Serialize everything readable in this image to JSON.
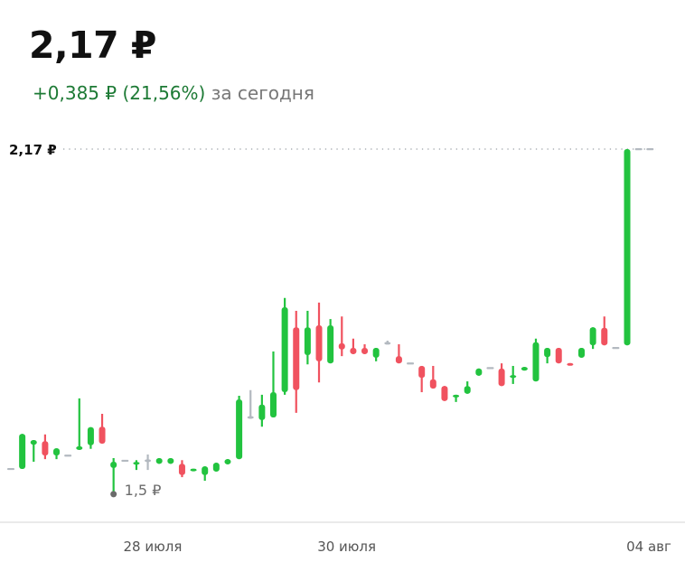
{
  "header": {
    "price": "2,17 ₽",
    "change": "+0,385 ₽ (21,56%)",
    "period": "за сегодня"
  },
  "chart_data": {
    "type": "candlestick",
    "title": "",
    "xlabel": "",
    "ylabel": "",
    "ylim": [
      1.45,
      2.2
    ],
    "grid": false,
    "x_tick_labels": [
      {
        "label": "28 июля",
        "index": 11
      },
      {
        "label": "30 июля",
        "index": 28
      },
      {
        "label": "04 авг",
        "index": 56
      }
    ],
    "last_price_label": "2,17 ₽",
    "last_price": 2.17,
    "min_label": "1,5 ₽",
    "min_value": 1.5,
    "min_index": 9,
    "colors": {
      "up": "#22c33f",
      "down": "#f0525f",
      "flat": "#b3b9c0",
      "text": "#111111",
      "axis": "#e3e3e3"
    },
    "ohlc": [
      [
        1.549,
        1.549,
        1.549,
        1.549
      ],
      [
        1.549,
        1.617,
        1.549,
        1.617
      ],
      [
        1.596,
        1.605,
        1.563,
        1.605
      ],
      [
        1.603,
        1.616,
        1.568,
        1.575
      ],
      [
        1.575,
        1.589,
        1.568,
        1.589
      ],
      [
        1.575,
        1.575,
        1.575,
        1.575
      ],
      [
        1.586,
        1.686,
        1.586,
        1.593
      ],
      [
        1.595,
        1.63,
        1.588,
        1.63
      ],
      [
        1.631,
        1.656,
        1.598,
        1.598
      ],
      [
        1.551,
        1.57,
        1.5,
        1.563
      ],
      [
        1.565,
        1.565,
        1.565,
        1.565
      ],
      [
        1.559,
        1.566,
        1.547,
        1.561
      ],
      [
        1.565,
        1.577,
        1.547,
        1.565
      ],
      [
        1.559,
        1.57,
        1.559,
        1.57
      ],
      [
        1.559,
        1.57,
        1.559,
        1.57
      ],
      [
        1.559,
        1.566,
        1.533,
        1.537
      ],
      [
        1.546,
        1.548,
        1.546,
        1.548
      ],
      [
        1.537,
        1.554,
        1.526,
        1.554
      ],
      [
        1.544,
        1.561,
        1.544,
        1.561
      ],
      [
        1.558,
        1.568,
        1.558,
        1.568
      ],
      [
        1.568,
        1.691,
        1.568,
        1.684
      ],
      [
        1.649,
        1.702,
        1.649,
        1.649
      ],
      [
        1.644,
        1.693,
        1.631,
        1.674
      ],
      [
        1.649,
        1.777,
        1.649,
        1.698
      ],
      [
        1.698,
        1.881,
        1.693,
        1.863
      ],
      [
        1.824,
        1.856,
        1.658,
        1.702
      ],
      [
        1.77,
        1.856,
        1.752,
        1.824
      ],
      [
        1.828,
        1.872,
        1.717,
        1.758
      ],
      [
        1.754,
        1.84,
        1.754,
        1.828
      ],
      [
        1.793,
        1.845,
        1.768,
        1.781
      ],
      [
        1.784,
        1.802,
        1.772,
        1.772
      ],
      [
        1.784,
        1.791,
        1.772,
        1.772
      ],
      [
        1.765,
        1.784,
        1.758,
        1.784
      ],
      [
        1.793,
        1.798,
        1.793,
        1.793
      ],
      [
        1.768,
        1.791,
        1.754,
        1.754
      ],
      [
        1.754,
        1.754,
        1.754,
        1.754
      ],
      [
        1.749,
        1.749,
        1.698,
        1.726
      ],
      [
        1.723,
        1.749,
        1.705,
        1.705
      ],
      [
        1.71,
        1.71,
        1.681,
        1.681
      ],
      [
        1.688,
        1.693,
        1.679,
        1.693
      ],
      [
        1.695,
        1.719,
        1.695,
        1.71
      ],
      [
        1.73,
        1.744,
        1.73,
        1.744
      ],
      [
        1.745,
        1.745,
        1.745,
        1.745
      ],
      [
        1.744,
        1.754,
        1.71,
        1.71
      ],
      [
        1.728,
        1.749,
        1.714,
        1.729
      ],
      [
        1.74,
        1.747,
        1.74,
        1.747
      ],
      [
        1.719,
        1.802,
        1.719,
        1.795
      ],
      [
        1.766,
        1.784,
        1.754,
        1.784
      ],
      [
        1.784,
        1.784,
        1.754,
        1.754
      ],
      [
        1.754,
        1.754,
        1.75,
        1.75
      ],
      [
        1.765,
        1.784,
        1.765,
        1.784
      ],
      [
        1.789,
        1.824,
        1.782,
        1.824
      ],
      [
        1.823,
        1.845,
        1.789,
        1.789
      ],
      [
        1.784,
        1.784,
        1.784,
        1.784
      ],
      [
        1.789,
        2.17,
        1.789,
        2.17
      ],
      [
        2.17,
        2.17,
        2.17,
        2.17
      ],
      [
        2.17,
        2.17,
        2.17,
        2.17
      ]
    ]
  }
}
